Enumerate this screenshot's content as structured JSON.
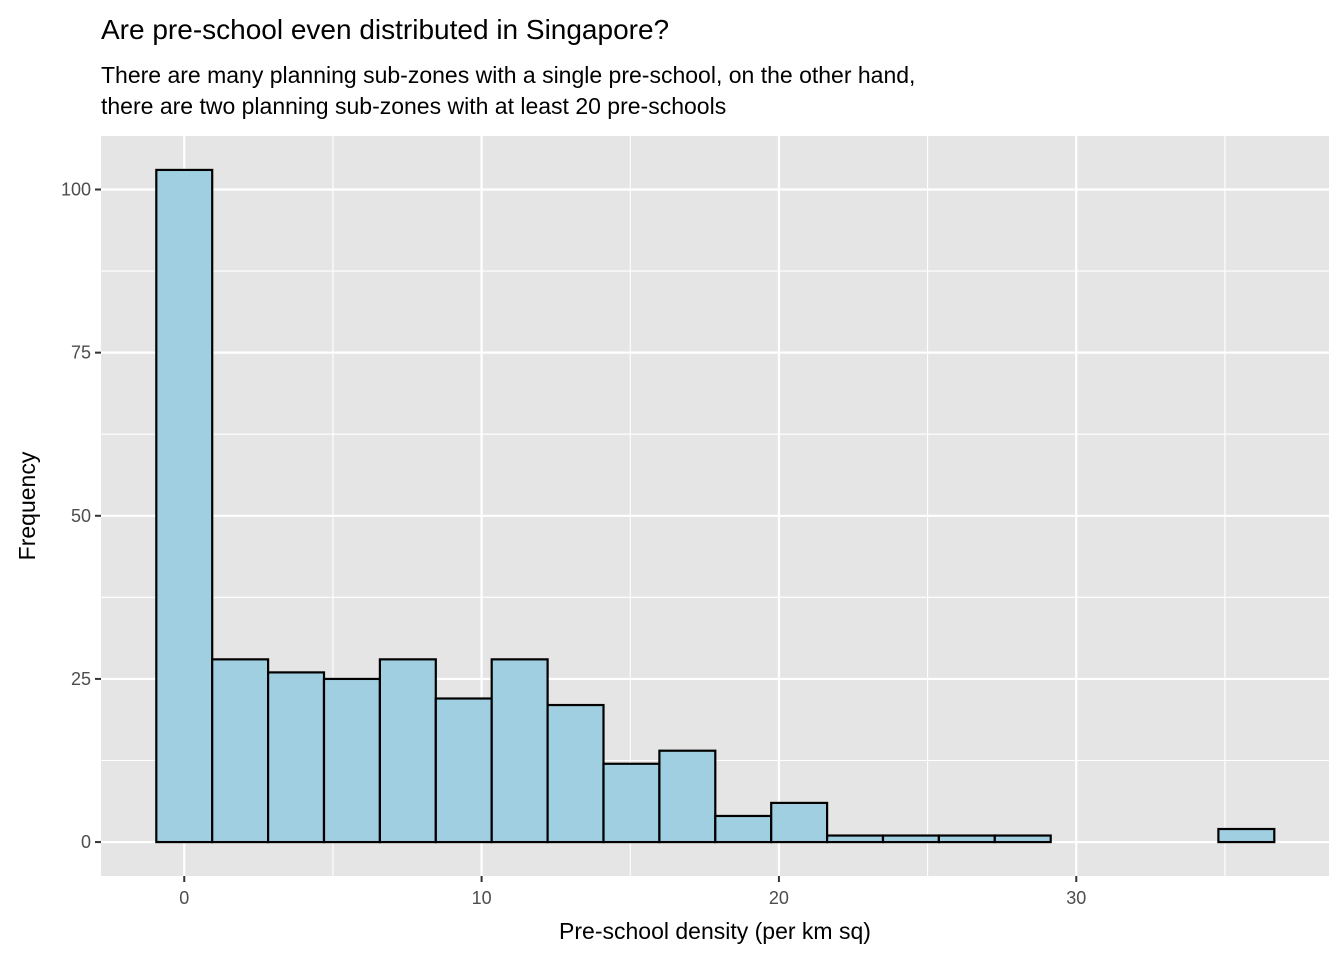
{
  "chart_data": {
    "type": "bar",
    "title": "Are pre-school even distributed in Singapore?",
    "subtitle_lines": [
      "There are many planning sub-zones with a single pre-school, on the other hand,",
      "there are two planning sub-zones with at least 20 pre-schools"
    ],
    "xlabel": "Pre-school density (per km sq)",
    "ylabel": "Frequency",
    "xlim": [
      -2.8,
      38.5
    ],
    "ylim": [
      -5.2,
      108.2
    ],
    "x_ticks": [
      0,
      10,
      20,
      30
    ],
    "y_ticks": [
      0,
      25,
      50,
      75,
      100
    ],
    "bin_width": 1.88,
    "bin_start": -0.94,
    "counts": [
      103,
      28,
      26,
      25,
      28,
      22,
      28,
      21,
      12,
      14,
      4,
      6,
      1,
      1,
      1,
      1,
      0,
      0,
      0,
      2
    ],
    "grid": true,
    "legend": "none",
    "colors": {
      "panel": "#e5e5e5",
      "grid": "#ffffff",
      "bar_fill": "#a0cfe1",
      "bar_stroke": "#000000"
    }
  }
}
